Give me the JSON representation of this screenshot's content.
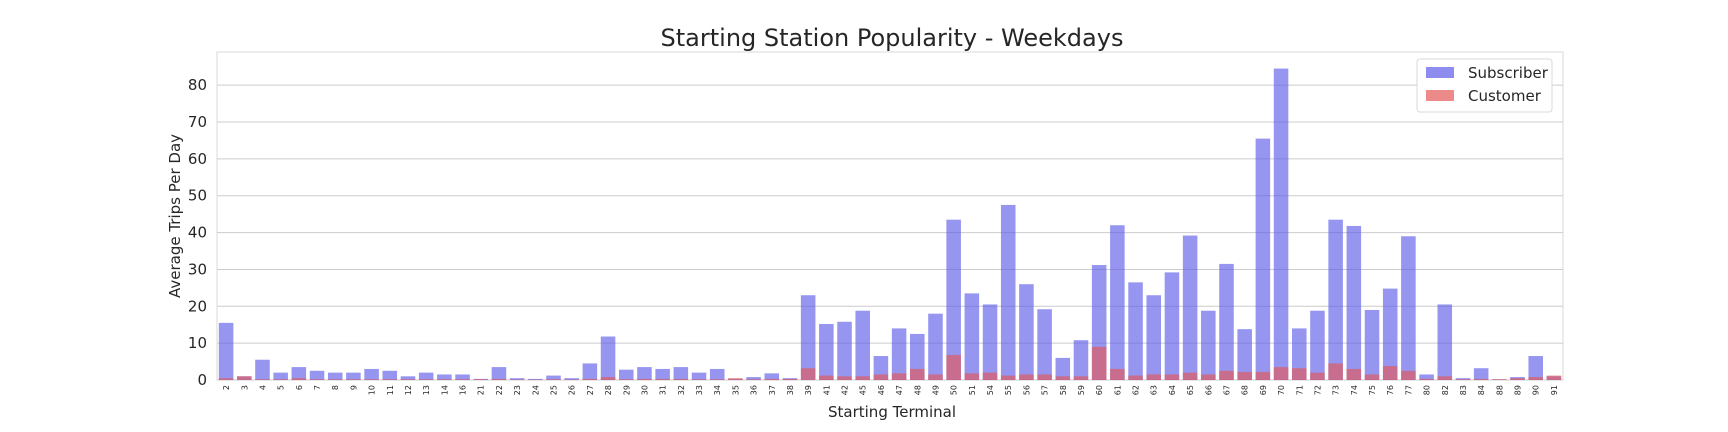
{
  "chart_data": {
    "type": "bar",
    "title": "Starting Station Popularity - Weekdays",
    "xlabel": "Starting Terminal",
    "ylabel": "Average Trips Per Day",
    "ylim": [
      0,
      89
    ],
    "yticks": [
      0,
      10,
      20,
      30,
      40,
      50,
      60,
      70,
      80
    ],
    "grid": true,
    "legend_position": "top-right",
    "categories": [
      "2",
      "3",
      "4",
      "5",
      "6",
      "7",
      "8",
      "9",
      "10",
      "11",
      "12",
      "13",
      "14",
      "16",
      "21",
      "22",
      "23",
      "24",
      "25",
      "26",
      "27",
      "28",
      "29",
      "30",
      "31",
      "32",
      "33",
      "34",
      "35",
      "36",
      "37",
      "38",
      "39",
      "41",
      "42",
      "45",
      "46",
      "47",
      "48",
      "49",
      "50",
      "51",
      "54",
      "55",
      "56",
      "57",
      "58",
      "59",
      "60",
      "61",
      "62",
      "63",
      "64",
      "65",
      "66",
      "67",
      "68",
      "69",
      "70",
      "71",
      "72",
      "73",
      "74",
      "75",
      "76",
      "77",
      "80",
      "82",
      "83",
      "84",
      "88",
      "89",
      "90",
      "91"
    ],
    "series": [
      {
        "name": "Subscriber",
        "color": "#5d5dea",
        "values": [
          15.5,
          1.0,
          5.5,
          2.0,
          3.5,
          2.5,
          2.0,
          2.0,
          3.0,
          2.5,
          1.0,
          2.0,
          1.5,
          1.5,
          0.3,
          3.5,
          0.5,
          0.3,
          1.2,
          0.5,
          4.5,
          11.8,
          2.8,
          3.5,
          3.0,
          3.5,
          2.0,
          3.0,
          0.3,
          0.8,
          1.8,
          0.5,
          23.0,
          15.2,
          15.8,
          18.8,
          6.5,
          14.0,
          12.5,
          18.0,
          43.5,
          23.5,
          20.5,
          47.5,
          26.0,
          19.2,
          6.0,
          10.8,
          31.2,
          42.0,
          26.5,
          23.0,
          29.2,
          39.2,
          18.8,
          31.5,
          13.8,
          65.5,
          84.5,
          14.0,
          18.8,
          43.5,
          41.8,
          19.0,
          24.8,
          39.0,
          1.5,
          20.5,
          0.5,
          3.2,
          0.2,
          0.8,
          6.5,
          1.0
        ]
      },
      {
        "name": "Customer",
        "color": "#e45858",
        "values": [
          0.5,
          1.0,
          0.2,
          0.2,
          0.5,
          0.2,
          0.2,
          0.2,
          0.2,
          0.2,
          0.2,
          0.2,
          0.2,
          0.2,
          0.2,
          0.3,
          0.1,
          0.1,
          0.2,
          0.1,
          0.3,
          0.8,
          0.2,
          0.3,
          0.3,
          0.3,
          0.2,
          0.2,
          0.5,
          0.2,
          0.3,
          0.3,
          3.2,
          1.2,
          1.0,
          1.0,
          1.5,
          1.8,
          3.0,
          1.5,
          6.8,
          1.8,
          2.0,
          1.2,
          1.5,
          1.5,
          1.0,
          1.0,
          9.0,
          3.0,
          1.2,
          1.5,
          1.5,
          2.0,
          1.5,
          2.5,
          2.2,
          2.2,
          3.5,
          3.2,
          2.0,
          4.5,
          3.0,
          1.5,
          3.8,
          2.5,
          0.3,
          1.0,
          0.2,
          0.3,
          0.2,
          0.5,
          0.8,
          1.2
        ]
      }
    ]
  }
}
